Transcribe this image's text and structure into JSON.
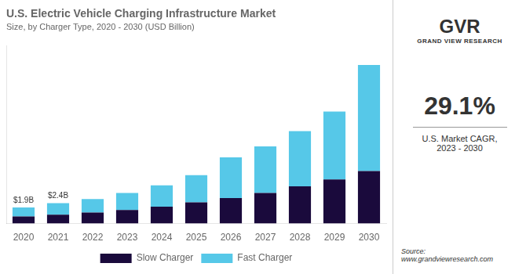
{
  "chart_data": {
    "type": "bar",
    "title": "U.S. Electric Vehicle Charging Infrastructure Market",
    "subtitle": "Size, by Charger Type, 2020 - 2030 (USD Billion)",
    "categories": [
      "2020",
      "2021",
      "2022",
      "2023",
      "2024",
      "2025",
      "2026",
      "2027",
      "2028",
      "2029",
      "2030"
    ],
    "series": [
      {
        "name": "Slow Charger",
        "color": "#1a0a3c",
        "values": [
          0.85,
          1.05,
          1.3,
          1.6,
          2.0,
          2.5,
          3.0,
          3.6,
          4.4,
          5.2,
          6.2
        ]
      },
      {
        "name": "Fast Charger",
        "color": "#56c8e8",
        "values": [
          1.05,
          1.35,
          1.6,
          2.0,
          2.5,
          3.2,
          4.8,
          5.5,
          6.5,
          8.0,
          12.5
        ]
      }
    ],
    "stacked": true,
    "ylim": [
      0,
      21
    ],
    "tick_labels": "x",
    "grid": false,
    "legend": "bottom",
    "annotations": [
      {
        "text": "$1.9B",
        "category": "2020"
      },
      {
        "text": "$2.4B",
        "category": "2021"
      },
      {
        "text": "GVR"
      },
      {
        "text": "GRAND VIEW RESEARCH"
      },
      {
        "text": "29.1%"
      },
      {
        "text": "U.S. Market CAGR,\n2023 - 2030"
      },
      {
        "text": "Source:\nwww.grandviewresearch.com"
      }
    ]
  }
}
